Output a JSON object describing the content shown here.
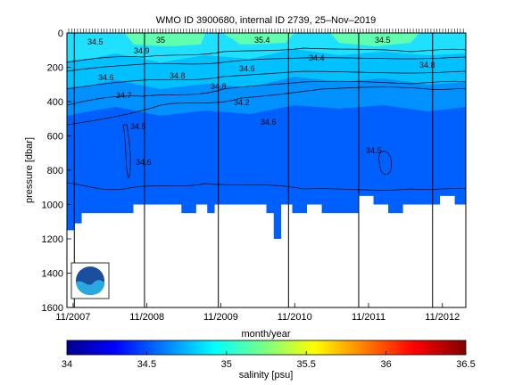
{
  "chart_data": {
    "type": "heatmap",
    "title": "WMO ID 3900680, internal ID 2739, 25–Nov–2019",
    "xlabel": "month/year",
    "ylabel": "pressure [dbar]",
    "x_tick_labels": [
      "11/2007",
      "11/2008",
      "11/2009",
      "11/2010",
      "11/2011",
      "11/2012"
    ],
    "y_tick_labels": [
      "0",
      "200",
      "400",
      "600",
      "800",
      "1000",
      "1200",
      "1400",
      "1600"
    ],
    "ylim": [
      1600,
      0
    ],
    "x_range_years": [
      2007.75,
      2013.15
    ],
    "colorbar": {
      "label": "salinity [psu]",
      "range": [
        34,
        36.5
      ],
      "tick_labels": [
        "34",
        "34.5",
        "35",
        "35.5",
        "36",
        "36.5"
      ]
    },
    "contour_labels": [
      "34.5",
      "34.6",
      "34.7",
      "34.8",
      "34.9",
      "35",
      "35.4",
      "34.5",
      "34.5",
      "34.6",
      "34.8",
      "34.2",
      "34.6",
      "34.4",
      "34.8",
      "34.5",
      "34.6"
    ],
    "profile_bottom_depth": {
      "x": [
        2007.75,
        2007.85,
        2007.95,
        2008.2,
        2008.45,
        2008.55,
        2008.65,
        2008.8,
        2009.0,
        2009.3,
        2009.5,
        2009.65,
        2009.75,
        2009.9,
        2010.1,
        2010.3,
        2010.45,
        2010.55,
        2010.65,
        2010.8,
        2011.0,
        2011.2,
        2011.4,
        2011.55,
        2011.7,
        2011.9,
        2012.1,
        2012.3,
        2012.5,
        2012.65,
        2012.8,
        2013.0,
        2013.15
      ],
      "y": [
        1150,
        1110,
        1050,
        1050,
        1050,
        1050,
        1000,
        1000,
        1000,
        1050,
        1000,
        1050,
        1000,
        1000,
        1000,
        1000,
        1050,
        1200,
        1000,
        1050,
        1000,
        1050,
        1050,
        1050,
        950,
        1000,
        1050,
        1000,
        1000,
        1000,
        950,
        1000,
        950
      ]
    },
    "profile_lines_x": [
      2007.85,
      2008.8,
      2009.8,
      2010.75,
      2011.7,
      2012.7
    ],
    "logo": "noaa-logo",
    "colors": {
      "deep": "#0060ff",
      "mid": "#0090ff",
      "upper": "#00c0ff",
      "shallow": "#20e0ff",
      "surface": "#60ffb0"
    }
  }
}
